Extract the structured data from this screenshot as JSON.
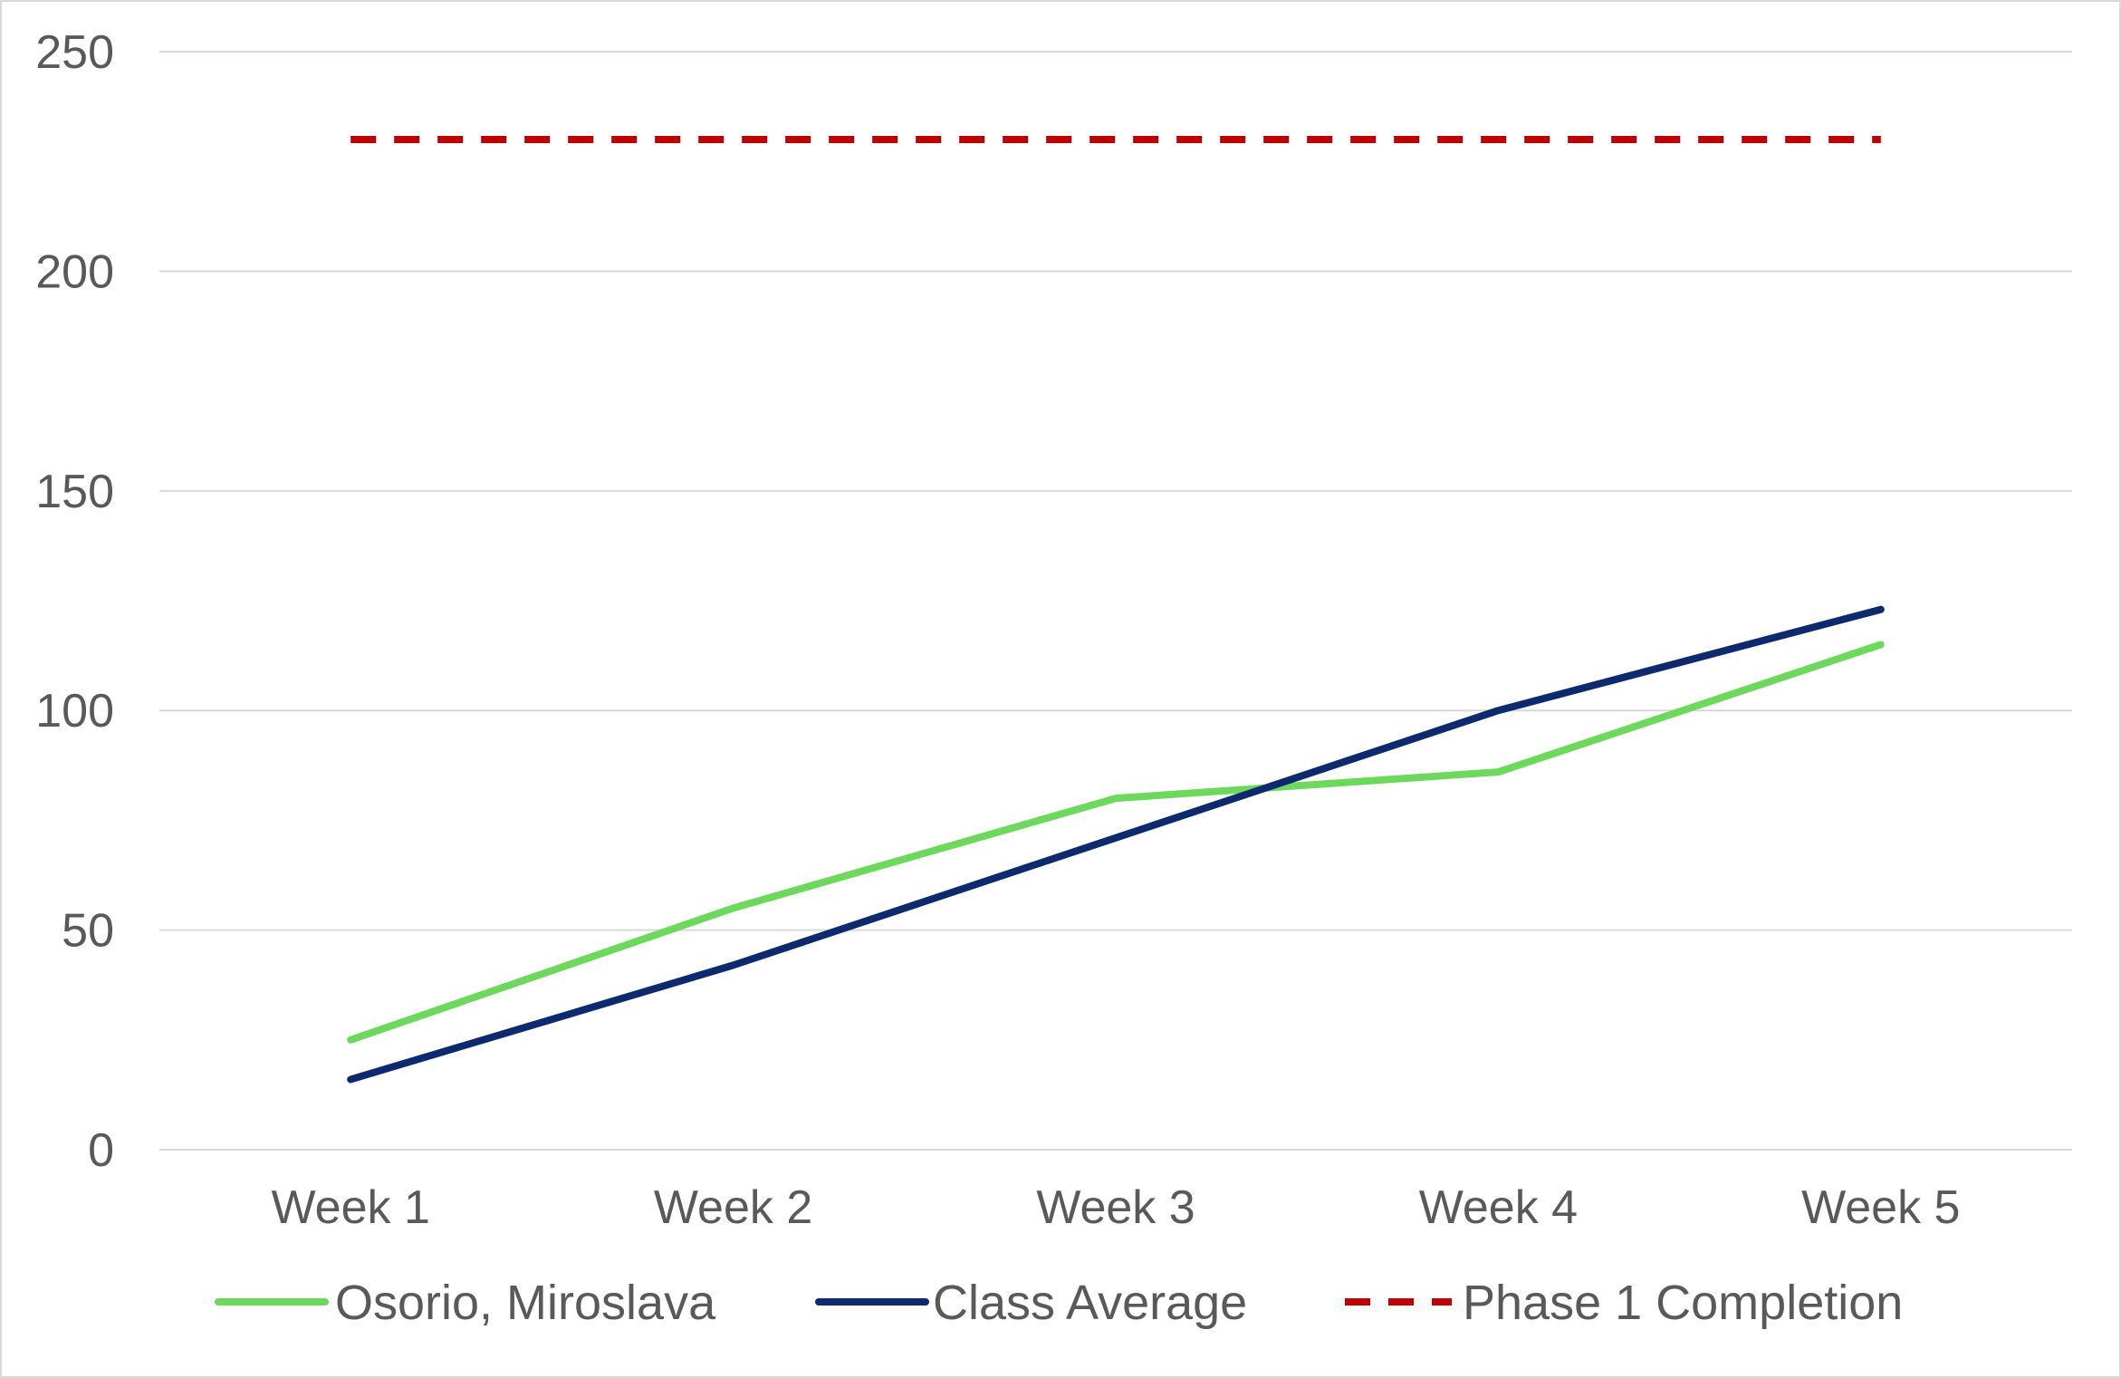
{
  "chart_data": {
    "type": "line",
    "title": "",
    "xlabel": "",
    "ylabel": "",
    "categories": [
      "Week 1",
      "Week 2",
      "Week 3",
      "Week 4",
      "Week 5"
    ],
    "ylim": [
      0,
      250
    ],
    "yticks": [
      0,
      50,
      100,
      150,
      200,
      250
    ],
    "yticks_labels": [
      "0",
      "50",
      "100",
      "150",
      "200",
      "250"
    ],
    "grid": "horizontal",
    "legend_position": "bottom",
    "series": [
      {
        "name": "Osorio, Miroslava",
        "values": [
          25,
          55,
          80,
          86,
          115
        ],
        "color": "#6dd95c",
        "style": "solid"
      },
      {
        "name": "Class Average",
        "values": [
          16,
          42,
          71,
          100,
          123
        ],
        "color": "#0d2a6e",
        "style": "solid"
      },
      {
        "name": "Phase 1 Completion",
        "values": [
          230,
          230,
          230,
          230,
          230
        ],
        "color": "#c00000",
        "style": "dashed"
      }
    ]
  }
}
